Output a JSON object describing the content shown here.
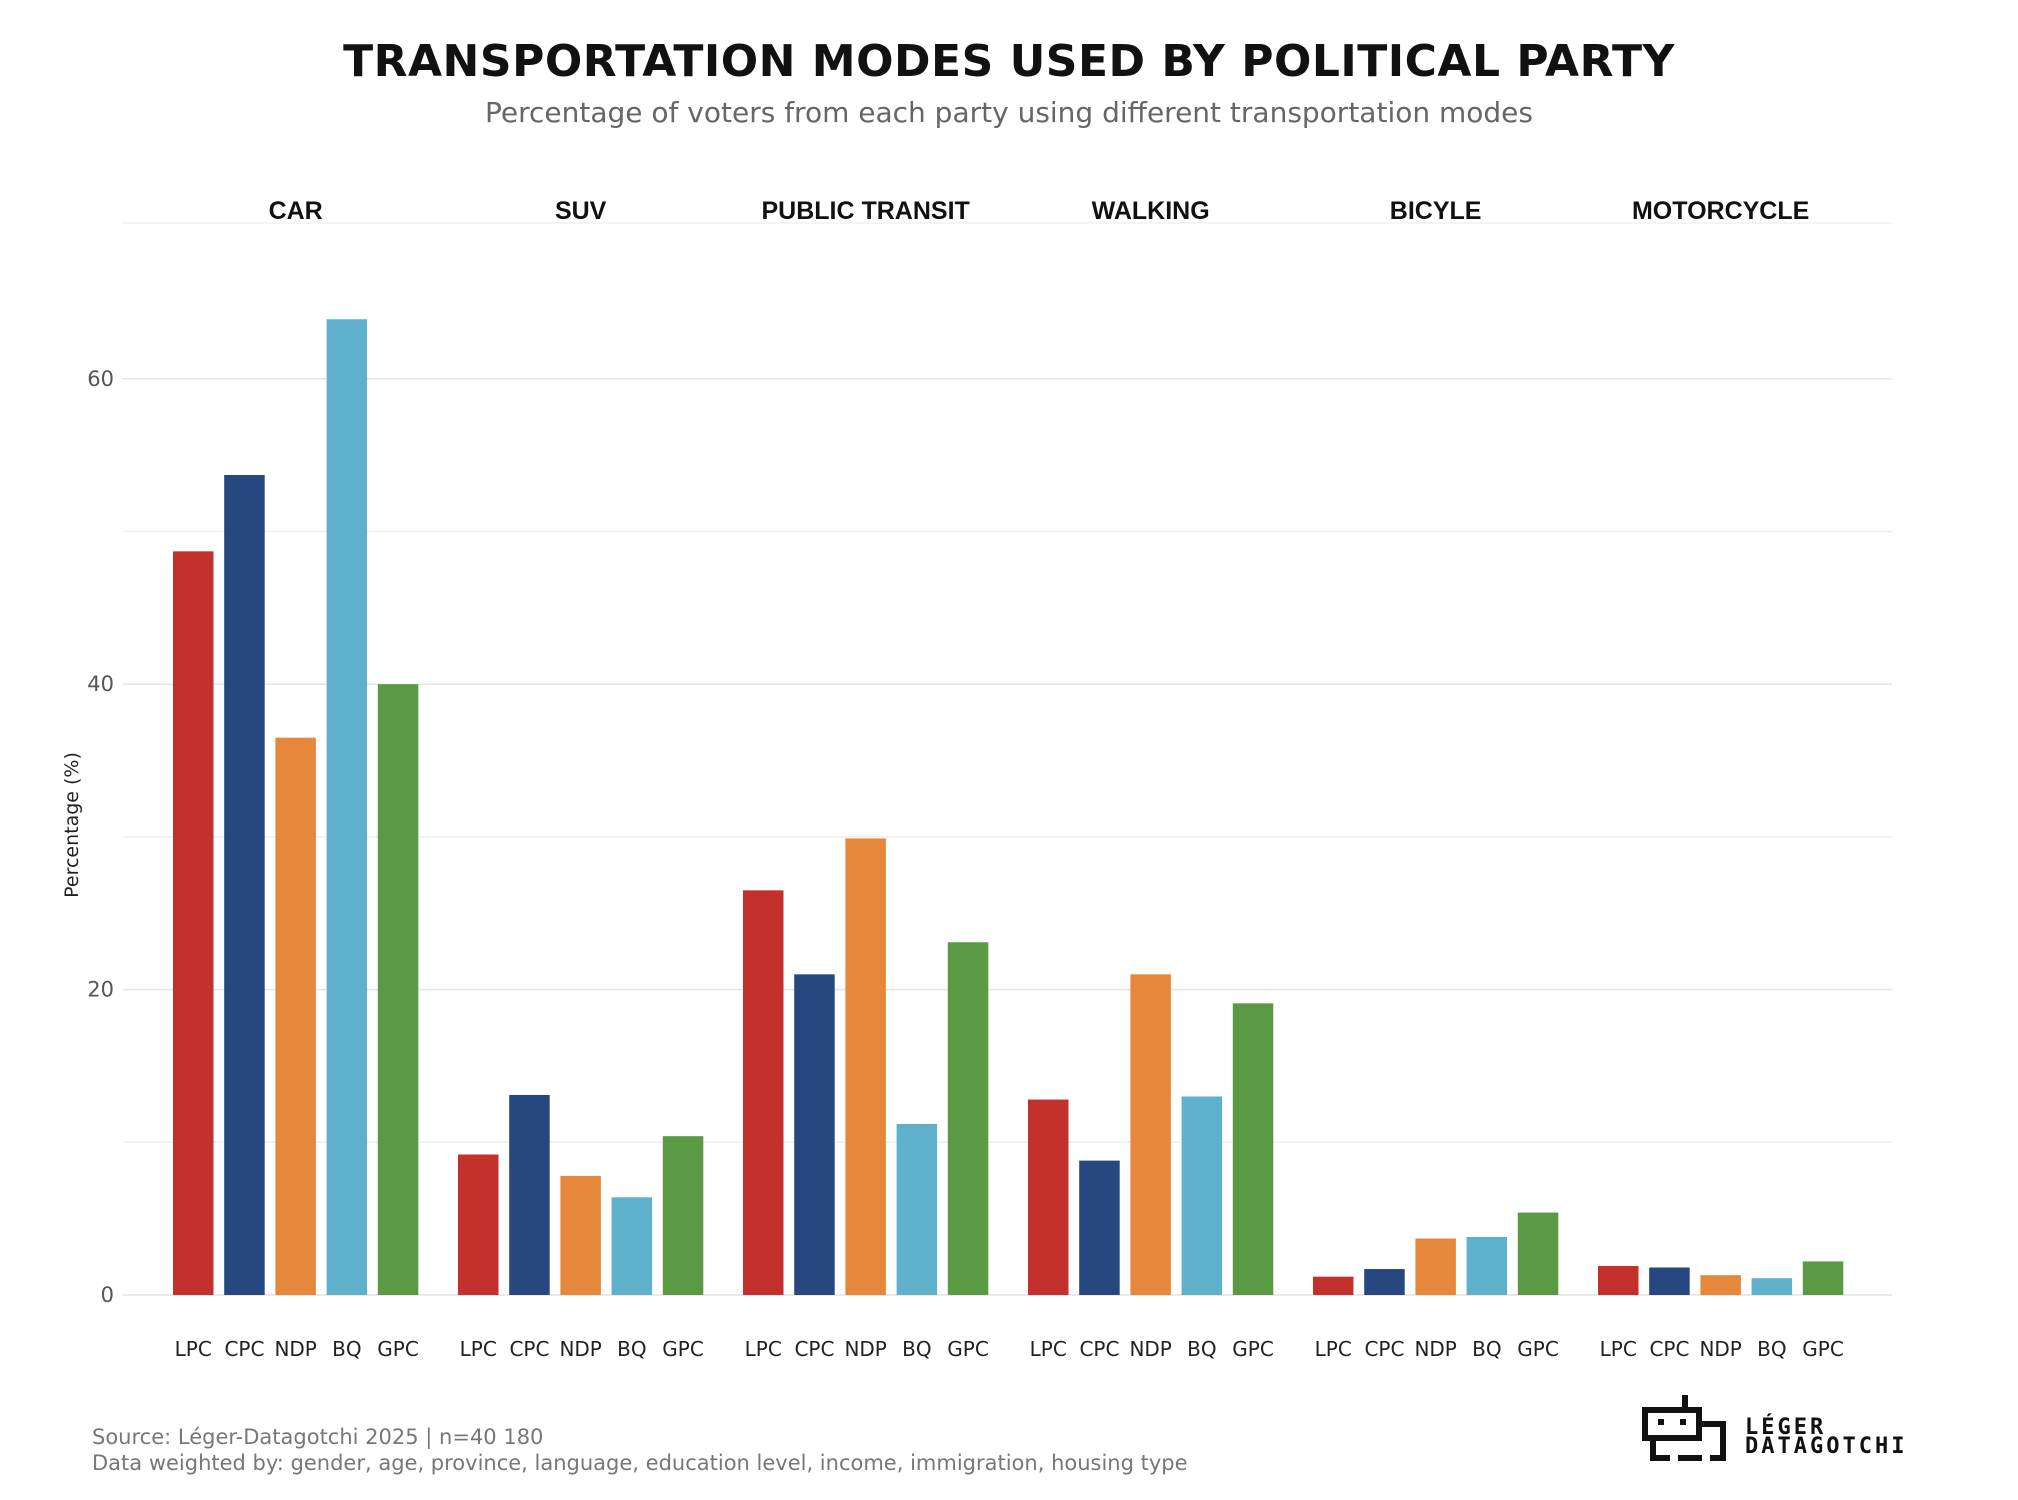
{
  "chart_data": {
    "type": "bar",
    "title": "TRANSPORTATION MODES USED BY POLITICAL PARTY",
    "subtitle": "Percentage of voters from each party using different transportation modes",
    "ylabel": "Percentage (%)",
    "ylim": [
      0,
      70
    ],
    "yticks": [
      0,
      20,
      40,
      60
    ],
    "grid": true,
    "facets": [
      "CAR",
      "SUV",
      "PUBLIC TRANSIT",
      "WALKING",
      "BICYLE",
      "MOTORCYCLE"
    ],
    "categories": [
      "LPC",
      "CPC",
      "NDP",
      "BQ",
      "GPC"
    ],
    "colors": {
      "LPC": "#c4302b",
      "CPC": "#26477f",
      "NDP": "#e6883b",
      "BQ": "#5eb0cb",
      "GPC": "#5a9a45"
    },
    "values": [
      [
        48.7,
        53.7,
        36.5,
        63.9,
        40.0
      ],
      [
        9.2,
        13.1,
        7.8,
        6.4,
        10.4
      ],
      [
        26.5,
        21.0,
        29.9,
        11.2,
        23.1
      ],
      [
        12.8,
        8.8,
        21.0,
        13.0,
        19.1
      ],
      [
        1.2,
        1.7,
        3.7,
        3.8,
        5.4
      ],
      [
        1.9,
        1.8,
        1.3,
        1.1,
        2.2
      ]
    ]
  },
  "footer": {
    "source": "Source: Léger-Datagotchi 2025 | n=40 180",
    "weights": "Data weighted by: gender, age, province, language, education level, income, immigration, housing type"
  },
  "logo": {
    "line1": "LÉGER",
    "line2": "DATAGOTCHI"
  }
}
